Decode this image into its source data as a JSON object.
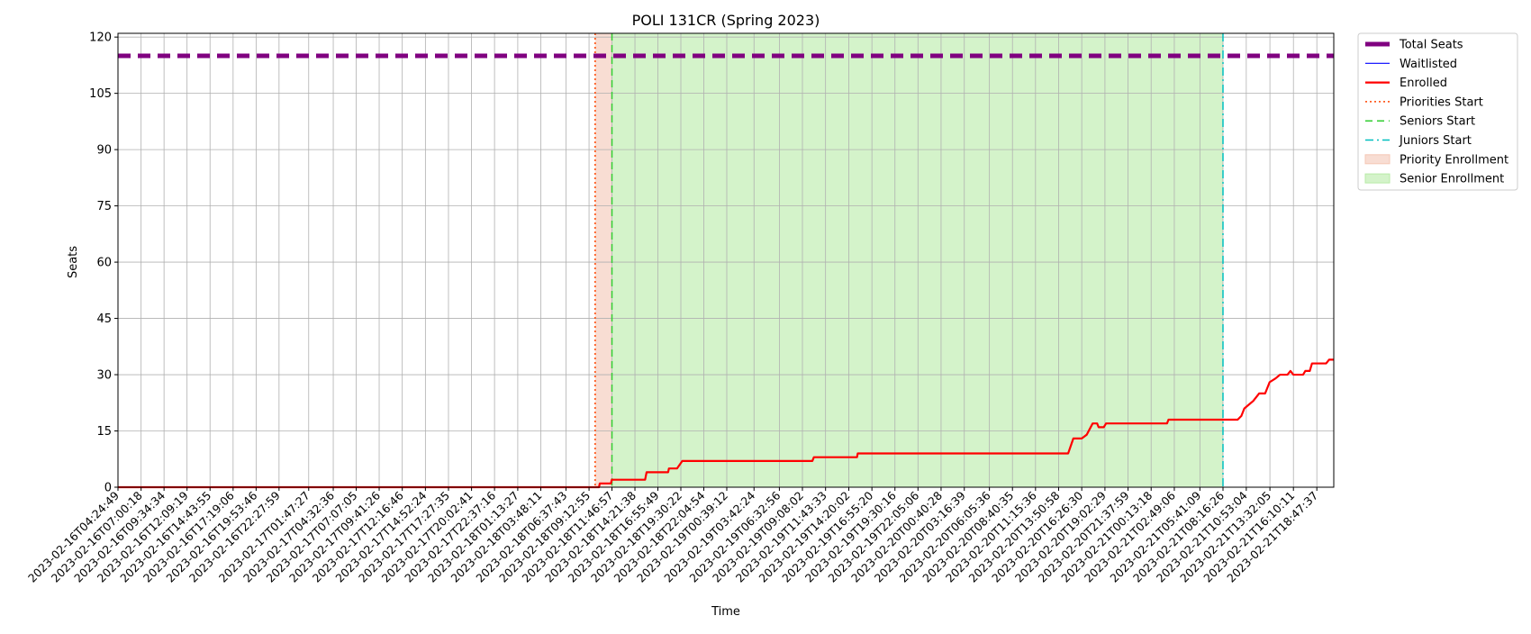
{
  "chart_data": {
    "type": "line",
    "title": "POLI 131CR (Spring 2023)",
    "xlabel": "Time",
    "ylabel": "Seats",
    "ylim": [
      0,
      121
    ],
    "yticks": [
      0,
      15,
      30,
      45,
      60,
      75,
      90,
      105,
      120
    ],
    "xrange": [
      "2023-02-16T04:24:49",
      "2023-02-21T20:41:30"
    ],
    "xticks": [
      "2023-02-16T04:24:49",
      "2023-02-16T07:00:18",
      "2023-02-16T09:34:34",
      "2023-02-16T12:09:19",
      "2023-02-16T14:43:55",
      "2023-02-16T17:19:06",
      "2023-02-16T19:53:46",
      "2023-02-16T22:27:59",
      "2023-02-17T01:47:27",
      "2023-02-17T04:32:36",
      "2023-02-17T07:07:05",
      "2023-02-17T09:41:26",
      "2023-02-17T12:16:46",
      "2023-02-17T14:52:24",
      "2023-02-17T17:27:35",
      "2023-02-17T20:02:41",
      "2023-02-17T22:37:16",
      "2023-02-18T01:13:27",
      "2023-02-18T03:48:11",
      "2023-02-18T06:37:43",
      "2023-02-18T09:12:55",
      "2023-02-18T11:46:57",
      "2023-02-18T14:21:38",
      "2023-02-18T16:55:49",
      "2023-02-18T19:30:22",
      "2023-02-18T22:04:54",
      "2023-02-19T00:39:12",
      "2023-02-19T03:42:24",
      "2023-02-19T06:32:56",
      "2023-02-19T09:08:02",
      "2023-02-19T11:43:33",
      "2023-02-19T14:20:02",
      "2023-02-19T16:55:20",
      "2023-02-19T19:30:16",
      "2023-02-19T22:05:06",
      "2023-02-20T00:40:28",
      "2023-02-20T03:16:39",
      "2023-02-20T06:05:36",
      "2023-02-20T08:40:35",
      "2023-02-20T11:15:36",
      "2023-02-20T13:50:58",
      "2023-02-20T16:26:30",
      "2023-02-20T19:02:29",
      "2023-02-20T21:37:59",
      "2023-02-21T00:13:18",
      "2023-02-21T02:49:06",
      "2023-02-21T05:41:09",
      "2023-02-21T08:16:26",
      "2023-02-21T10:53:04",
      "2023-02-21T13:32:05",
      "2023-02-21T16:10:11",
      "2023-02-21T18:47:37"
    ],
    "grid": true,
    "legend_position": "outside-top-right",
    "series": [
      {
        "name": "Total Seats",
        "style": "dashed",
        "color": "#800080",
        "points": [
          [
            "2023-02-16T04:24:49",
            115
          ],
          [
            "2023-02-21T20:41:30",
            115
          ]
        ]
      },
      {
        "name": "Waitlisted",
        "style": "solid",
        "color": "#0000ff",
        "points": []
      },
      {
        "name": "Enrolled",
        "style": "solid",
        "color": "#ff0000",
        "points": [
          [
            "2023-02-16T04:24:49",
            0
          ],
          [
            "2023-02-18T10:20:00",
            0
          ],
          [
            "2023-02-18T10:25:00",
            1
          ],
          [
            "2023-02-18T11:40:00",
            1
          ],
          [
            "2023-02-18T11:46:00",
            2
          ],
          [
            "2023-02-18T15:30:00",
            2
          ],
          [
            "2023-02-18T15:40:00",
            4
          ],
          [
            "2023-02-18T18:05:00",
            4
          ],
          [
            "2023-02-18T18:10:00",
            5
          ],
          [
            "2023-02-18T19:05:00",
            5
          ],
          [
            "2023-02-18T19:40:00",
            7
          ],
          [
            "2023-02-19T10:15:00",
            7
          ],
          [
            "2023-02-19T10:25:00",
            8
          ],
          [
            "2023-02-19T15:15:00",
            8
          ],
          [
            "2023-02-19T15:20:00",
            9
          ],
          [
            "2023-02-20T14:55:00",
            9
          ],
          [
            "2023-02-20T15:30:00",
            13
          ],
          [
            "2023-02-20T16:26:30",
            13
          ],
          [
            "2023-02-20T17:00:00",
            14
          ],
          [
            "2023-02-20T17:40:00",
            17
          ],
          [
            "2023-02-20T18:10:00",
            17
          ],
          [
            "2023-02-20T18:20:00",
            16
          ],
          [
            "2023-02-20T18:55:00",
            16
          ],
          [
            "2023-02-20T19:10:00",
            17
          ],
          [
            "2023-02-21T02:00:00",
            17
          ],
          [
            "2023-02-21T02:10:00",
            18
          ],
          [
            "2023-02-21T09:55:00",
            18
          ],
          [
            "2023-02-21T10:20:00",
            19
          ],
          [
            "2023-02-21T10:40:00",
            21
          ],
          [
            "2023-02-21T11:10:00",
            22
          ],
          [
            "2023-02-21T11:40:00",
            23
          ],
          [
            "2023-02-21T12:20:00",
            25
          ],
          [
            "2023-02-21T13:00:00",
            25
          ],
          [
            "2023-02-21T13:30:00",
            28
          ],
          [
            "2023-02-21T14:10:00",
            29
          ],
          [
            "2023-02-21T14:40:00",
            30
          ],
          [
            "2023-02-21T15:30:00",
            30
          ],
          [
            "2023-02-21T15:50:00",
            31
          ],
          [
            "2023-02-21T16:10:00",
            30
          ],
          [
            "2023-02-21T17:15:00",
            30
          ],
          [
            "2023-02-21T17:30:00",
            31
          ],
          [
            "2023-02-21T18:00:00",
            31
          ],
          [
            "2023-02-21T18:15:00",
            33
          ],
          [
            "2023-02-21T19:50:00",
            33
          ],
          [
            "2023-02-21T20:10:00",
            34
          ],
          [
            "2023-02-21T20:41:30",
            34
          ]
        ]
      }
    ],
    "markers": [
      {
        "name": "Priorities Start",
        "x": "2023-02-18T09:54:00",
        "style": "dotted",
        "color": "#ff4500"
      },
      {
        "name": "Seniors Start",
        "x": "2023-02-18T11:46:57",
        "style": "dashed",
        "color": "#32cd32"
      },
      {
        "name": "Juniors Start",
        "x": "2023-02-21T08:16:26",
        "style": "dashdot",
        "color": "#00bfbf"
      }
    ],
    "regions": [
      {
        "name": "Priority Enrollment",
        "from": "2023-02-18T09:54:00",
        "to": "2023-02-18T11:46:57",
        "color": "#f4c7b6"
      },
      {
        "name": "Senior Enrollment",
        "from": "2023-02-18T11:46:57",
        "to": "2023-02-21T08:16:26",
        "color": "#b8eba7"
      }
    ],
    "legend": [
      "Total Seats",
      "Waitlisted",
      "Enrolled",
      "Priorities Start",
      "Seniors Start",
      "Juniors Start",
      "Priority Enrollment",
      "Senior Enrollment"
    ]
  }
}
